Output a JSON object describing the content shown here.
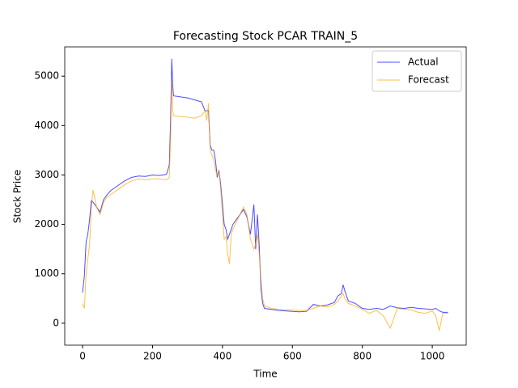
{
  "chart_data": {
    "type": "line",
    "title": "Forecasting Stock PCAR TRAIN_5",
    "x_label": "Time",
    "y_label": "Stock Price",
    "x": [
      0,
      5,
      10,
      15,
      20,
      25,
      30,
      40,
      50,
      60,
      70,
      80,
      100,
      120,
      140,
      160,
      180,
      200,
      220,
      240,
      248,
      252,
      255,
      258,
      260,
      280,
      300,
      320,
      340,
      350,
      355,
      360,
      365,
      370,
      375,
      380,
      385,
      390,
      395,
      400,
      405,
      410,
      415,
      420,
      425,
      430,
      440,
      450,
      460,
      470,
      480,
      490,
      495,
      500,
      505,
      510,
      515,
      520,
      540,
      560,
      580,
      600,
      620,
      640,
      660,
      680,
      700,
      720,
      730,
      740,
      745,
      750,
      760,
      780,
      800,
      820,
      840,
      860,
      880,
      900,
      920,
      940,
      960,
      980,
      1000,
      1010,
      1020,
      1030,
      1045
    ],
    "series": [
      {
        "name": "Actual",
        "color": "#0000ff",
        "values": [
          620,
          950,
          1650,
          1800,
          2100,
          2480,
          2450,
          2350,
          2250,
          2500,
          2600,
          2680,
          2780,
          2880,
          2950,
          2980,
          2970,
          3000,
          2990,
          3010,
          3200,
          4200,
          5350,
          4800,
          4600,
          4580,
          4560,
          4520,
          4480,
          4300,
          4300,
          4300,
          3600,
          3500,
          3500,
          3300,
          2950,
          3100,
          2800,
          2400,
          2000,
          1900,
          1700,
          1800,
          1900,
          2000,
          2100,
          2200,
          2300,
          2150,
          1800,
          2400,
          1500,
          2200,
          1600,
          700,
          400,
          300,
          280,
          260,
          250,
          240,
          230,
          240,
          380,
          350,
          370,
          420,
          550,
          600,
          780,
          650,
          450,
          400,
          300,
          280,
          300,
          280,
          350,
          310,
          300,
          320,
          300,
          290,
          280,
          300,
          250,
          220,
          220
        ]
      },
      {
        "name": "Forecast",
        "color": "#ffa500",
        "values": [
          400,
          300,
          1000,
          1300,
          1600,
          2300,
          2700,
          2350,
          2200,
          2450,
          2550,
          2600,
          2700,
          2800,
          2880,
          2920,
          2900,
          2920,
          2920,
          2900,
          2950,
          3800,
          4900,
          4300,
          4200,
          4180,
          4170,
          4150,
          4200,
          4300,
          4100,
          4450,
          3500,
          3400,
          3300,
          3100,
          3000,
          3100,
          2700,
          2200,
          1700,
          1750,
          1400,
          1200,
          1800,
          1900,
          2050,
          2200,
          2350,
          2200,
          1700,
          1500,
          1600,
          1800,
          1400,
          900,
          500,
          350,
          300,
          280,
          270,
          270,
          260,
          260,
          300,
          350,
          330,
          380,
          450,
          550,
          600,
          500,
          400,
          350,
          280,
          200,
          260,
          150,
          -100,
          300,
          280,
          270,
          220,
          200,
          250,
          150,
          -150,
          200,
          200
        ]
      }
    ],
    "xlim": [
      -51,
      1097
    ],
    "ylim": [
      -444,
      5592
    ],
    "xticks": [
      0,
      200,
      400,
      600,
      800,
      1000
    ],
    "yticks": [
      0,
      1000,
      2000,
      3000,
      4000,
      5000
    ],
    "legend": "upper right"
  }
}
